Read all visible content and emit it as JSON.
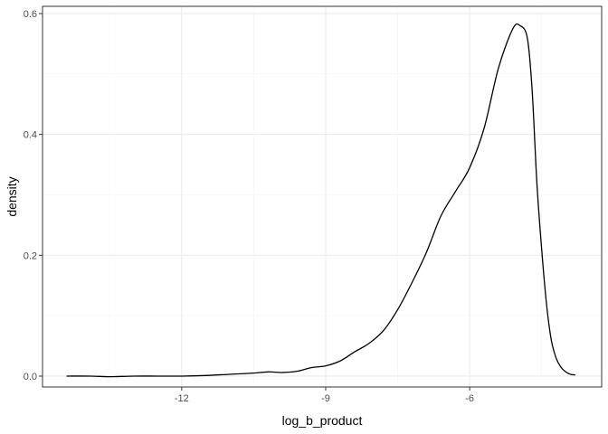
{
  "chart_data": {
    "type": "line",
    "subtype": "density",
    "title": "",
    "xlabel": "log_b_product",
    "ylabel": "density",
    "xlim": [
      -14.9,
      -3.25
    ],
    "ylim": [
      -0.018,
      0.612
    ],
    "x_ticks": [
      -12,
      -9,
      -6
    ],
    "x_tick_labels": [
      "-12",
      "-9",
      "-6"
    ],
    "x_minor_ticks": [
      -13.5,
      -10.5,
      -7.5,
      -4.5
    ],
    "y_ticks": [
      0.0,
      0.2,
      0.4,
      0.6
    ],
    "y_tick_labels": [
      "0.0",
      "0.2",
      "0.4",
      "0.6"
    ],
    "y_minor_ticks": [
      0.1,
      0.3,
      0.5
    ],
    "grid": true,
    "theme": "bw",
    "colors": {
      "line": "#000000",
      "grid_major": "#ebebeb",
      "grid_minor": "#f5f5f5",
      "panel_border": "#333333"
    },
    "series": [
      {
        "x": [
          -14.4,
          -13.9,
          -13.5,
          -13.0,
          -12.5,
          -12.0,
          -11.5,
          -11.0,
          -10.5,
          -10.2,
          -9.9,
          -9.6,
          -9.3,
          -9.0,
          -8.7,
          -8.4,
          -8.1,
          -7.8,
          -7.5,
          -7.2,
          -6.9,
          -6.6,
          -6.3,
          -6.0,
          -5.7,
          -5.4,
          -5.1,
          -4.95,
          -4.8,
          -4.7,
          -4.6,
          -4.5,
          -4.4,
          -4.3,
          -4.2,
          -4.1,
          -4.0,
          -3.9,
          -3.8
        ],
        "y": [
          0.0,
          0.0,
          -0.001,
          0.0,
          0.0,
          0.0,
          0.001,
          0.003,
          0.005,
          0.007,
          0.006,
          0.008,
          0.014,
          0.017,
          0.025,
          0.04,
          0.054,
          0.075,
          0.11,
          0.155,
          0.205,
          0.265,
          0.305,
          0.345,
          0.41,
          0.51,
          0.575,
          0.58,
          0.56,
          0.475,
          0.32,
          0.21,
          0.12,
          0.06,
          0.03,
          0.015,
          0.007,
          0.003,
          0.002
        ]
      }
    ]
  }
}
